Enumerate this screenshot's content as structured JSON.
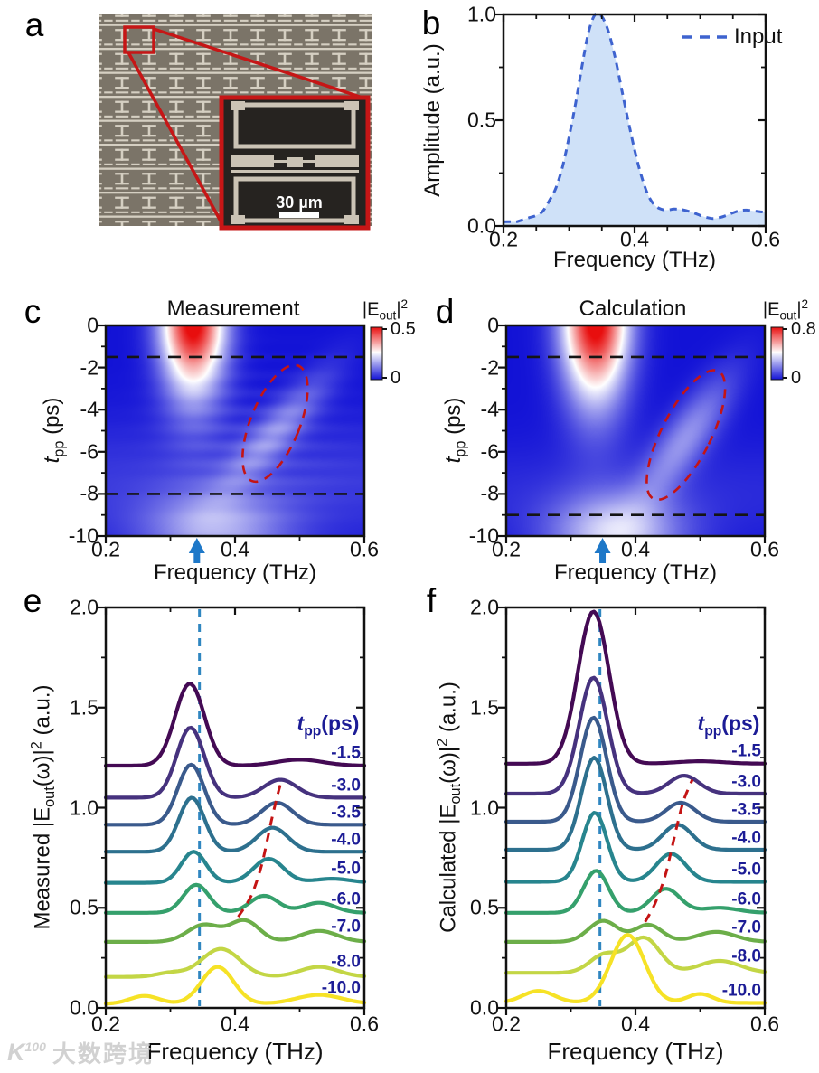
{
  "watermark": {
    "logo_k": "K",
    "logo_num": "100",
    "brand_text": "大数跨境"
  },
  "panel_a": {
    "letter": "a",
    "inset_scale_label": "30 µm"
  },
  "panel_b": {
    "letter": "b",
    "ylabel": "Amplitude (a.u.)",
    "xlabel": "Frequency (THz)",
    "legend_label": "Input",
    "ytick_labels": [
      "1.0",
      "0.5",
      "0.0"
    ],
    "xtick_labels": [
      "0.2",
      "0.4",
      "0.6"
    ],
    "line_color": "#3e63cf",
    "fill_color": "#cfe1f8"
  },
  "panel_c": {
    "letter": "c",
    "title": "Measurement",
    "xlabel": "Frequency (THz)",
    "ylabel_parts": [
      [
        "i",
        "t"
      ],
      [
        "sub",
        "pp"
      ],
      [
        "t",
        " (ps)"
      ]
    ],
    "colorbar": {
      "label_parts": [
        [
          "t",
          "|E"
        ],
        [
          "sub",
          "out"
        ],
        [
          "t",
          "|"
        ],
        [
          "sup",
          "2"
        ]
      ],
      "max": "0.5",
      "min": "0"
    },
    "ytick_labels": [
      "0",
      "-2",
      "-4",
      "-6",
      "-8",
      "-10"
    ],
    "xtick_labels": [
      "0.2",
      "0.4",
      "0.6"
    ]
  },
  "panel_d": {
    "letter": "d",
    "title": "Calculation",
    "xlabel": "Frequency (THz)",
    "ylabel_parts": [
      [
        "i",
        "t"
      ],
      [
        "sub",
        "pp"
      ],
      [
        "t",
        " (ps)"
      ]
    ],
    "colorbar": {
      "label_parts": [
        [
          "t",
          "|E"
        ],
        [
          "sub",
          "out"
        ],
        [
          "t",
          "|"
        ],
        [
          "sup",
          "2"
        ]
      ],
      "max": "0.8",
      "min": "0"
    },
    "ytick_labels": [
      "0",
      "-2",
      "-4",
      "-6",
      "-8",
      "-10"
    ],
    "xtick_labels": [
      "0.2",
      "0.4",
      "0.6"
    ]
  },
  "panel_e": {
    "letter": "e",
    "xlabel": "Frequency (THz)",
    "ylabel_parts": [
      [
        "t",
        "Measured |E"
      ],
      [
        "sub",
        "out"
      ],
      [
        "t",
        "(ω)|"
      ],
      [
        "sup",
        "2"
      ],
      [
        "t",
        " (a.u.)"
      ]
    ],
    "series_header_parts": [
      [
        "bi",
        "t"
      ],
      [
        "bsub",
        "pp"
      ],
      [
        "b",
        "(ps)"
      ]
    ],
    "ytick_labels": [
      "2.0",
      "1.5",
      "1.0",
      "0.5",
      "0.0"
    ],
    "xtick_labels": [
      "0.2",
      "0.4",
      "0.6"
    ],
    "label_color": "#1c1c96"
  },
  "panel_f": {
    "letter": "f",
    "xlabel": "Frequency (THz)",
    "ylabel_parts": [
      [
        "t",
        "Calculated |E"
      ],
      [
        "sub",
        "out"
      ],
      [
        "t",
        "(ω)|"
      ],
      [
        "sup",
        "2"
      ],
      [
        "t",
        " (a.u.)"
      ]
    ],
    "series_header_parts": [
      [
        "bi",
        "t"
      ],
      [
        "bsub",
        "pp"
      ],
      [
        "b",
        "(ps)"
      ]
    ],
    "ytick_labels": [
      "2.0",
      "1.5",
      "1.0",
      "0.5",
      "0.0"
    ],
    "xtick_labels": [
      "0.2",
      "0.4",
      "0.6"
    ],
    "label_color": "#1c1c96"
  },
  "chart_data": [
    {
      "id": "b",
      "type": "area",
      "title": "Input THz spectrum",
      "xlabel": "Frequency (THz)",
      "ylabel": "Amplitude (a.u.)",
      "legend": [
        "Input"
      ],
      "legend_position": "top-right",
      "xlim": [
        0.2,
        0.6
      ],
      "ylim": [
        0.0,
        1.0
      ],
      "x": [
        0.2,
        0.21,
        0.22,
        0.23,
        0.24,
        0.25,
        0.26,
        0.27,
        0.28,
        0.29,
        0.3,
        0.31,
        0.32,
        0.33,
        0.34,
        0.35,
        0.36,
        0.37,
        0.38,
        0.39,
        0.4,
        0.41,
        0.42,
        0.43,
        0.44,
        0.45,
        0.46,
        0.47,
        0.48,
        0.49,
        0.5,
        0.51,
        0.52,
        0.53,
        0.54,
        0.55,
        0.56,
        0.57,
        0.58,
        0.59,
        0.6
      ],
      "y": [
        0.02,
        0.02,
        0.02,
        0.03,
        0.04,
        0.05,
        0.07,
        0.12,
        0.18,
        0.28,
        0.42,
        0.58,
        0.76,
        0.92,
        1.0,
        0.99,
        0.92,
        0.8,
        0.65,
        0.5,
        0.36,
        0.24,
        0.15,
        0.1,
        0.08,
        0.075,
        0.08,
        0.078,
        0.072,
        0.062,
        0.05,
        0.04,
        0.035,
        0.04,
        0.05,
        0.062,
        0.072,
        0.075,
        0.072,
        0.068,
        0.065
      ]
    },
    {
      "id": "c",
      "type": "heatmap",
      "title": "Measurement",
      "xlabel": "Frequency (THz)",
      "ylabel": "tpp (ps)",
      "xlim": [
        0.2,
        0.6
      ],
      "ylim": [
        -10,
        0
      ],
      "colorbar_range": [
        0,
        0.5
      ],
      "colormap_stops": [
        "#1212d6",
        "#ffffff",
        "#e81010"
      ],
      "model": {
        "main": {
          "f0": 0.335,
          "fw": 0.048,
          "tdecay": 3.1,
          "tpow": 1.7,
          "amp": 1.05
        },
        "revival": {
          "f0": 0.37,
          "fw": 0.11,
          "t0": -9.6,
          "tw": 1.7,
          "amp": 0.3
        },
        "sideband": {
          "f_start": 0.4,
          "t_start": -7.5,
          "f_end": 0.53,
          "t_end": -2.5,
          "fw": 0.04,
          "tc": -5.0,
          "tw": 2.8,
          "amp": 0.22
        },
        "haze": {
          "t0": -7.5,
          "tw": 3.0,
          "amp": 0.08
        },
        "stripes": {
          "amp": 0.05,
          "period": 0.85,
          "fc": 0.43,
          "fwidth": 0.13,
          "tc": -5.5,
          "twidth": 3.2
        }
      },
      "dashed_lines_t": [
        -1.5,
        -8.0
      ],
      "arrow_freq": 0.341,
      "ellipse": {
        "f": 0.462,
        "t": -4.65,
        "rf": 0.038,
        "rt": 2.95,
        "angle_deg": 22
      }
    },
    {
      "id": "d",
      "type": "heatmap",
      "title": "Calculation",
      "xlabel": "Frequency (THz)",
      "ylabel": "tpp (ps)",
      "xlim": [
        0.2,
        0.6
      ],
      "ylim": [
        -10,
        0
      ],
      "colorbar_range": [
        0,
        0.8
      ],
      "colormap_stops": [
        "#1212d6",
        "#ffffff",
        "#e81010"
      ],
      "model": {
        "main": {
          "f0": 0.338,
          "fw": 0.05,
          "tdecay": 3.5,
          "tpow": 1.7,
          "amp": 1.05
        },
        "revival": {
          "f0": 0.37,
          "fw": 0.1,
          "t0": -9.9,
          "tw": 1.9,
          "amp": 0.4
        },
        "sideband": {
          "f_start": 0.415,
          "t_start": -8.5,
          "f_end": 0.545,
          "t_end": -2.0,
          "fw": 0.042,
          "tc": -5.3,
          "tw": 3.0,
          "amp": 0.26
        },
        "haze": {
          "t0": -8.0,
          "tw": 2.5,
          "amp": 0.05
        },
        "stripes": {
          "amp": 0.0,
          "period": 0.85,
          "fc": 0.43,
          "fwidth": 0.13,
          "tc": -5.5,
          "twidth": 3.2
        }
      },
      "dashed_lines_t": [
        -1.5,
        -9.0
      ],
      "arrow_freq": 0.349,
      "ellipse": {
        "f": 0.478,
        "t": -5.2,
        "rf": 0.038,
        "rt": 3.4,
        "angle_deg": 27
      }
    },
    {
      "id": "e",
      "type": "line",
      "title": "Measured output spectra vs pump-probe delay",
      "xlabel": "Frequency (THz)",
      "ylabel": "Measured |Eout(ω)|2 (a.u.)",
      "xlim": [
        0.2,
        0.6
      ],
      "ylim": [
        0.0,
        2.0
      ],
      "vline_freq": 0.345,
      "trend": [
        [
          0.405,
          0.455
        ],
        [
          0.425,
          0.56
        ],
        [
          0.44,
          0.7
        ],
        [
          0.45,
          0.84
        ],
        [
          0.458,
          0.96
        ],
        [
          0.468,
          1.09
        ],
        [
          0.473,
          1.14
        ]
      ],
      "series": [
        {
          "name": "-1.5",
          "color": "#440a54",
          "baseline": 1.21,
          "peaks": [
            [
              0.33,
              0.41,
              0.032
            ],
            [
              0.5,
              0.03,
              0.05
            ]
          ]
        },
        {
          "name": "-3.0",
          "color": "#46327e",
          "baseline": 1.05,
          "peaks": [
            [
              0.331,
              0.35,
              0.03
            ],
            [
              0.47,
              0.09,
              0.036
            ]
          ]
        },
        {
          "name": "-3.5",
          "color": "#3a5a8c",
          "baseline": 0.915,
          "peaks": [
            [
              0.332,
              0.3,
              0.029
            ],
            [
              0.465,
              0.11,
              0.034
            ]
          ]
        },
        {
          "name": "-4.0",
          "color": "#2d708e",
          "baseline": 0.78,
          "peaks": [
            [
              0.333,
              0.27,
              0.028
            ],
            [
              0.458,
              0.12,
              0.034
            ]
          ]
        },
        {
          "name": "-5.0",
          "color": "#27858e",
          "baseline": 0.625,
          "peaks": [
            [
              0.336,
              0.155,
              0.027
            ],
            [
              0.452,
              0.12,
              0.033
            ],
            [
              0.55,
              0.02,
              0.04
            ]
          ]
        },
        {
          "name": "-6.0",
          "color": "#35a06c",
          "baseline": 0.475,
          "peaks": [
            [
              0.34,
              0.14,
              0.028
            ],
            [
              0.445,
              0.085,
              0.031
            ],
            [
              0.53,
              0.05,
              0.035
            ]
          ]
        },
        {
          "name": "-7.0",
          "color": "#6cae49",
          "baseline": 0.33,
          "peaks": [
            [
              0.352,
              0.085,
              0.036
            ],
            [
              0.415,
              0.105,
              0.032
            ],
            [
              0.53,
              0.055,
              0.04
            ]
          ]
        },
        {
          "name": "-8.0",
          "color": "#c3d645",
          "baseline": 0.155,
          "peaks": [
            [
              0.378,
              0.14,
              0.042
            ],
            [
              0.3,
              0.02,
              0.03
            ],
            [
              0.53,
              0.05,
              0.042
            ]
          ]
        },
        {
          "name": "-10.0",
          "color": "#f6e226",
          "baseline": 0.02,
          "peaks": [
            [
              0.373,
              0.185,
              0.035
            ],
            [
              0.26,
              0.04,
              0.032
            ],
            [
              0.53,
              0.045,
              0.05
            ]
          ]
        }
      ]
    },
    {
      "id": "f",
      "type": "line",
      "title": "Calculated output spectra vs pump-probe delay",
      "xlabel": "Frequency (THz)",
      "ylabel": "Calculated |Eout(ω)|2 (a.u.)",
      "xlim": [
        0.2,
        0.6
      ],
      "ylim": [
        0.0,
        2.0
      ],
      "vline_freq": 0.345,
      "trend": [
        [
          0.415,
          0.43
        ],
        [
          0.43,
          0.52
        ],
        [
          0.445,
          0.65
        ],
        [
          0.455,
          0.78
        ],
        [
          0.465,
          0.92
        ],
        [
          0.475,
          1.04
        ],
        [
          0.488,
          1.14
        ]
      ],
      "series": [
        {
          "name": "-1.5",
          "color": "#440a54",
          "baseline": 1.22,
          "peaks": [
            [
              0.335,
              0.76,
              0.034
            ],
            [
              0.5,
              0.012,
              0.05
            ]
          ]
        },
        {
          "name": "-3.0",
          "color": "#46327e",
          "baseline": 1.07,
          "peaks": [
            [
              0.335,
              0.58,
              0.031
            ],
            [
              0.475,
              0.09,
              0.033
            ]
          ]
        },
        {
          "name": "-3.5",
          "color": "#3a5a8c",
          "baseline": 0.93,
          "peaks": [
            [
              0.335,
              0.52,
              0.029
            ],
            [
              0.47,
              0.095,
              0.032
            ]
          ]
        },
        {
          "name": "-4.0",
          "color": "#2d708e",
          "baseline": 0.79,
          "peaks": [
            [
              0.336,
              0.46,
              0.028
            ],
            [
              0.465,
              0.125,
              0.032
            ]
          ]
        },
        {
          "name": "-5.0",
          "color": "#27858e",
          "baseline": 0.63,
          "peaks": [
            [
              0.337,
              0.345,
              0.027
            ],
            [
              0.455,
              0.14,
              0.032
            ]
          ]
        },
        {
          "name": "-6.0",
          "color": "#35a06c",
          "baseline": 0.475,
          "peaks": [
            [
              0.339,
              0.21,
              0.027
            ],
            [
              0.447,
              0.12,
              0.031
            ],
            [
              0.53,
              0.025,
              0.04
            ]
          ]
        },
        {
          "name": "-7.0",
          "color": "#6cae49",
          "baseline": 0.33,
          "peaks": [
            [
              0.35,
              0.105,
              0.032
            ],
            [
              0.42,
              0.085,
              0.03
            ],
            [
              0.525,
              0.05,
              0.042
            ]
          ]
        },
        {
          "name": "-8.0",
          "color": "#c3d645",
          "baseline": 0.175,
          "peaks": [
            [
              0.352,
              0.09,
              0.032
            ],
            [
              0.413,
              0.175,
              0.035
            ],
            [
              0.53,
              0.06,
              0.045
            ]
          ]
        },
        {
          "name": "-10.0",
          "color": "#f6e226",
          "baseline": 0.025,
          "peaks": [
            [
              0.388,
              0.34,
              0.037
            ],
            [
              0.25,
              0.06,
              0.035
            ],
            [
              0.5,
              0.045,
              0.028
            ]
          ]
        }
      ]
    }
  ]
}
